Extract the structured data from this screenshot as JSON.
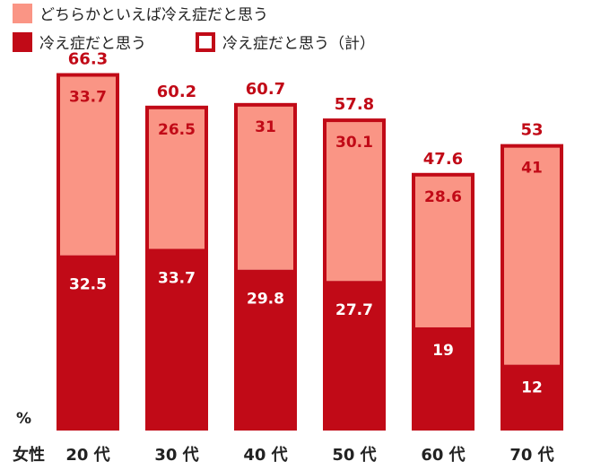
{
  "chart_data": {
    "type": "bar",
    "stacked": true,
    "categories": [
      "20 代",
      "30 代",
      "40 代",
      "50 代",
      "60 代",
      "70 代"
    ],
    "category_group_label": "女性",
    "unit_label": "%",
    "series": [
      {
        "name": "冷え症だと思う",
        "values": [
          32.5,
          33.7,
          29.8,
          27.7,
          19.0,
          12.0
        ],
        "color": "#c10a17"
      },
      {
        "name": "どちらかといえば冷え症だと思う",
        "values": [
          33.7,
          26.5,
          31.0,
          30.1,
          28.6,
          41.0
        ],
        "color": "#fa9585"
      }
    ],
    "totals": {
      "name": "冷え症だと思う（計）",
      "values": [
        66.3,
        60.2,
        60.7,
        57.8,
        47.6,
        53.0
      ],
      "color": "#c10a17"
    },
    "legend": [
      {
        "label": "どちらかといえば冷え症だと思う",
        "style": "fill",
        "color": "#fa9585"
      },
      {
        "label": "冷え症だと思う",
        "style": "fill",
        "color": "#c10a17"
      },
      {
        "label": "冷え症だと思う（計）",
        "style": "outline",
        "color": "#c10a17"
      }
    ],
    "legend_position": "top-left",
    "ylim": [
      0,
      70
    ],
    "grid": false,
    "colors": {
      "bottom_label_text": "#ffffff",
      "top_label_text": "#c10a17",
      "total_label_text": "#c10a17",
      "axis_text": "#222222"
    }
  }
}
